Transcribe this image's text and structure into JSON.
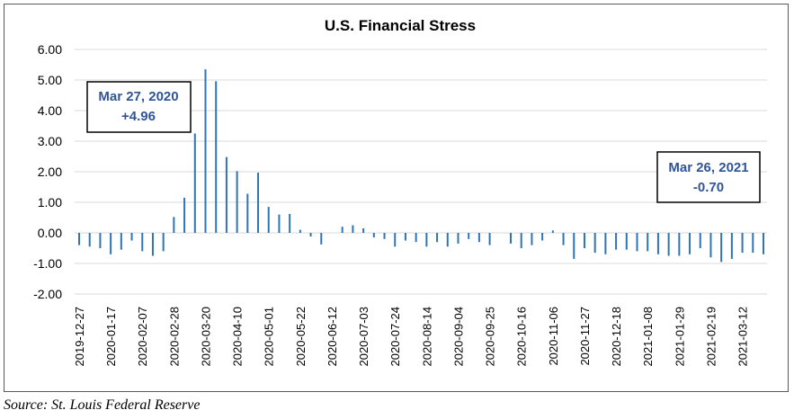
{
  "source_note": "Source:  St. Louis Federal Reserve",
  "chart_data": {
    "type": "bar",
    "title": "U.S. Financial Stress",
    "xlabel": "",
    "ylabel": "",
    "ylim": [
      -2.0,
      6.0
    ],
    "yticks": [
      "6.00",
      "5.00",
      "4.00",
      "3.00",
      "2.00",
      "1.00",
      "0.00",
      "-1.00",
      "-2.00"
    ],
    "ytick_values": [
      6,
      5,
      4,
      3,
      2,
      1,
      0,
      -1,
      -2
    ],
    "grid": true,
    "bar_color": "#2e75b6",
    "x_tick_labels": [
      "2019-12-27",
      "2020-01-17",
      "2020-02-07",
      "2020-02-28",
      "2020-03-20",
      "2020-04-10",
      "2020-05-01",
      "2020-05-22",
      "2020-06-12",
      "2020-07-03",
      "2020-07-24",
      "2020-08-14",
      "2020-09-04",
      "2020-09-25",
      "2020-10-16",
      "2020-11-06",
      "2020-11-27",
      "2020-12-18",
      "2021-01-08",
      "2021-01-29",
      "2021-02-19",
      "2021-03-12"
    ],
    "x": [
      "2019-12-27",
      "2020-01-03",
      "2020-01-10",
      "2020-01-17",
      "2020-01-24",
      "2020-01-31",
      "2020-02-07",
      "2020-02-14",
      "2020-02-21",
      "2020-02-28",
      "2020-03-06",
      "2020-03-13",
      "2020-03-20",
      "2020-03-27",
      "2020-04-03",
      "2020-04-10",
      "2020-04-17",
      "2020-04-24",
      "2020-05-01",
      "2020-05-08",
      "2020-05-15",
      "2020-05-22",
      "2020-05-29",
      "2020-06-05",
      "2020-06-12",
      "2020-06-19",
      "2020-06-26",
      "2020-07-03",
      "2020-07-10",
      "2020-07-17",
      "2020-07-24",
      "2020-07-31",
      "2020-08-07",
      "2020-08-14",
      "2020-08-21",
      "2020-08-28",
      "2020-09-04",
      "2020-09-11",
      "2020-09-18",
      "2020-09-25",
      "2020-10-02",
      "2020-10-09",
      "2020-10-16",
      "2020-10-23",
      "2020-10-30",
      "2020-11-06",
      "2020-11-13",
      "2020-11-20",
      "2020-11-27",
      "2020-12-04",
      "2020-12-11",
      "2020-12-18",
      "2020-12-25",
      "2021-01-01",
      "2021-01-08",
      "2021-01-15",
      "2021-01-22",
      "2021-01-29",
      "2021-02-05",
      "2021-02-12",
      "2021-02-19",
      "2021-02-26",
      "2021-03-05",
      "2021-03-12",
      "2021-03-19",
      "2021-03-26"
    ],
    "values": [
      -0.4,
      -0.45,
      -0.5,
      -0.7,
      -0.55,
      -0.25,
      -0.6,
      -0.75,
      -0.6,
      0.52,
      1.15,
      3.25,
      5.35,
      4.96,
      2.48,
      2.02,
      1.28,
      1.97,
      0.85,
      0.6,
      0.62,
      0.1,
      -0.12,
      -0.38,
      0.0,
      0.2,
      0.25,
      0.15,
      -0.15,
      -0.2,
      -0.45,
      -0.25,
      -0.3,
      -0.45,
      -0.3,
      -0.45,
      -0.35,
      -0.2,
      -0.3,
      -0.4,
      0.0,
      -0.35,
      -0.5,
      -0.4,
      -0.25,
      0.08,
      -0.4,
      -0.85,
      -0.5,
      -0.65,
      -0.7,
      -0.55,
      -0.55,
      -0.6,
      -0.6,
      -0.7,
      -0.75,
      -0.75,
      -0.7,
      -0.5,
      -0.8,
      -0.95,
      -0.85,
      -0.65,
      -0.65,
      -0.7
    ],
    "annotations": [
      {
        "date_label": "Mar 27, 2020",
        "value_label": "+4.96"
      },
      {
        "date_label": "Mar 26, 2021",
        "value_label": "-0.70"
      }
    ]
  }
}
